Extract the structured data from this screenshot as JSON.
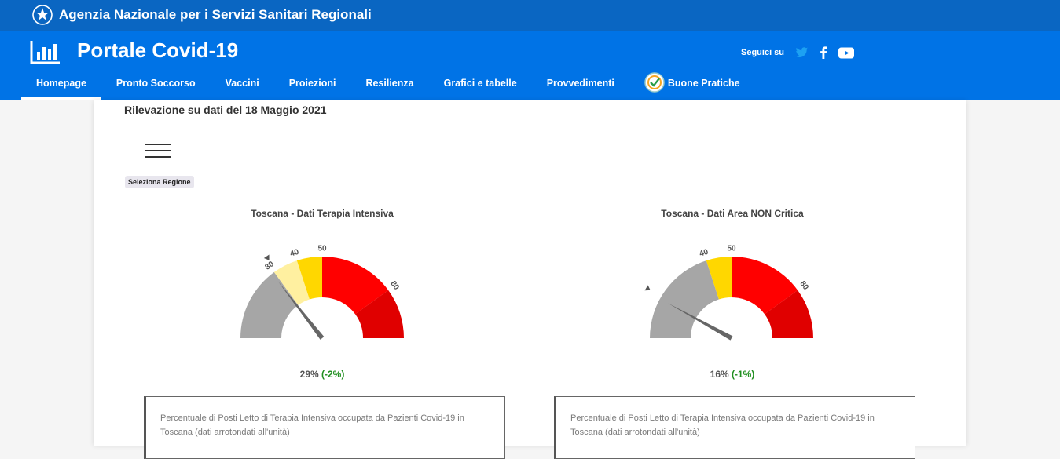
{
  "agency": {
    "title": "Agenzia Nazionale per i Servizi Sanitari Regionali",
    "logo_icon": "italian-republic-emblem-icon"
  },
  "portal": {
    "title": "Portale Covid-19",
    "icon": "bar-chart-icon",
    "social_label": "Seguici su",
    "social_icons": [
      "twitter-icon",
      "facebook-icon",
      "youtube-icon"
    ]
  },
  "nav": {
    "items": [
      "Homepage",
      "Pronto Soccorso",
      "Vaccini",
      "Proiezioni",
      "Resilienza",
      "Grafici e tabelle",
      "Provvedimenti",
      "Buone Pratiche"
    ],
    "active": "Homepage"
  },
  "main": {
    "date_title": "Rilevazione su dati del 18 Maggio 2021",
    "region_label": "Seleziona Regione"
  },
  "gauges": [
    {
      "title": "Toscana - Dati Terapia Intensiva",
      "value": 29,
      "value_text": "29%",
      "delta_text": "(-2%)",
      "previous_value": 31,
      "ticks": [
        "30",
        "40",
        "50",
        "80"
      ],
      "bands": [
        {
          "from": 0,
          "to": 30,
          "color": "#a6a6a6"
        },
        {
          "from": 30,
          "to": 40,
          "color": "#fff0a0"
        },
        {
          "from": 40,
          "to": 50,
          "color": "#ffd700"
        },
        {
          "from": 50,
          "to": 80,
          "color": "#ff0000"
        },
        {
          "from": 80,
          "to": 100,
          "color": "#e00000"
        }
      ],
      "description": "Percentuale di Posti Letto di Terapia Intensiva occupata da Pazienti Covid-19 in Toscana (dati arrotondati all'unità)"
    },
    {
      "title": "Toscana - Dati Area NON Critica",
      "value": 16,
      "value_text": "16%",
      "delta_text": "(-1%)",
      "previous_value": 17,
      "ticks": [
        "40",
        "50",
        "80"
      ],
      "bands": [
        {
          "from": 0,
          "to": 40,
          "color": "#a6a6a6"
        },
        {
          "from": 40,
          "to": 50,
          "color": "#ffd700"
        },
        {
          "from": 50,
          "to": 80,
          "color": "#ff0000"
        },
        {
          "from": 80,
          "to": 100,
          "color": "#e00000"
        }
      ],
      "description": "Percentuale di Posti Letto di Terapia Intensiva occupata da Pazienti Covid-19 in Toscana (dati arrotondati all'unità)"
    }
  ],
  "colors": {
    "agency_bar": "#0a66c2",
    "header": "#0073e6",
    "delta_green": "#1f8f1f"
  }
}
